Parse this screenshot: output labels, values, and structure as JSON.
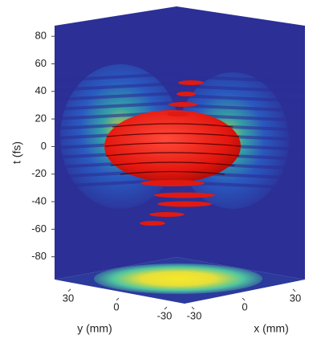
{
  "chart_data": {
    "type": "isosurface3d",
    "zlabel": "t (fs)",
    "xlabel": "x (mm)",
    "ylabel": "y (mm)",
    "zlim": [
      -100,
      90
    ],
    "zticks": [
      80,
      60,
      40,
      20,
      0,
      -20,
      -40,
      -60,
      -80
    ],
    "xticks": [
      -30,
      0,
      30
    ],
    "yticks": [
      30,
      0,
      -30
    ]
  }
}
